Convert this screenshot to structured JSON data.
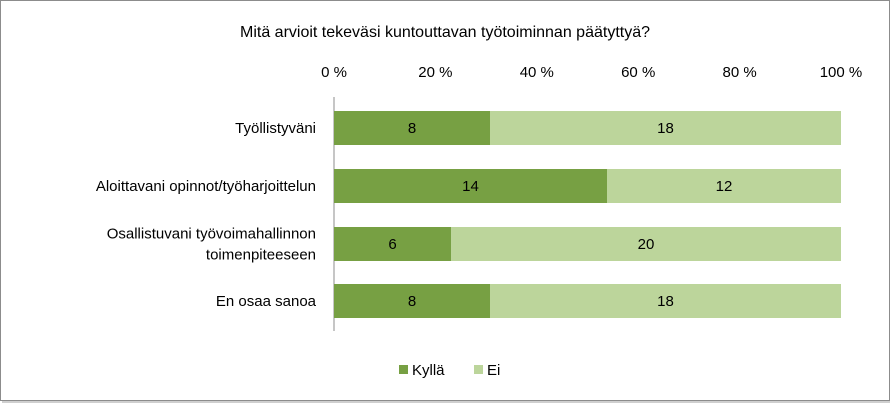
{
  "chart_data": {
    "type": "bar",
    "orientation": "horizontal",
    "stacked": "percent",
    "title": "Mitä arvioit tekeväsi kuntouttavan työtoiminnan päätyttyä?",
    "categories": [
      [
        "Työllistyväni"
      ],
      [
        "Aloittavani opinnot/työharjoittelun"
      ],
      [
        "Osallistuvani työvoimahallinnon",
        "toimenpiteeseen"
      ],
      [
        "En osaa sanoa"
      ]
    ],
    "series": [
      {
        "name": "Kyllä",
        "color": "#77a043",
        "values": [
          8,
          14,
          6,
          8
        ]
      },
      {
        "name": "Ei",
        "color": "#bcd59b",
        "values": [
          18,
          12,
          20,
          18
        ]
      }
    ],
    "x_ticks": [
      "0 %",
      "20 %",
      "40 %",
      "60 %",
      "80 %",
      "100 %"
    ],
    "xlim": [
      0,
      100
    ],
    "axis_position": "top",
    "grid": false,
    "legend_position": "bottom"
  }
}
